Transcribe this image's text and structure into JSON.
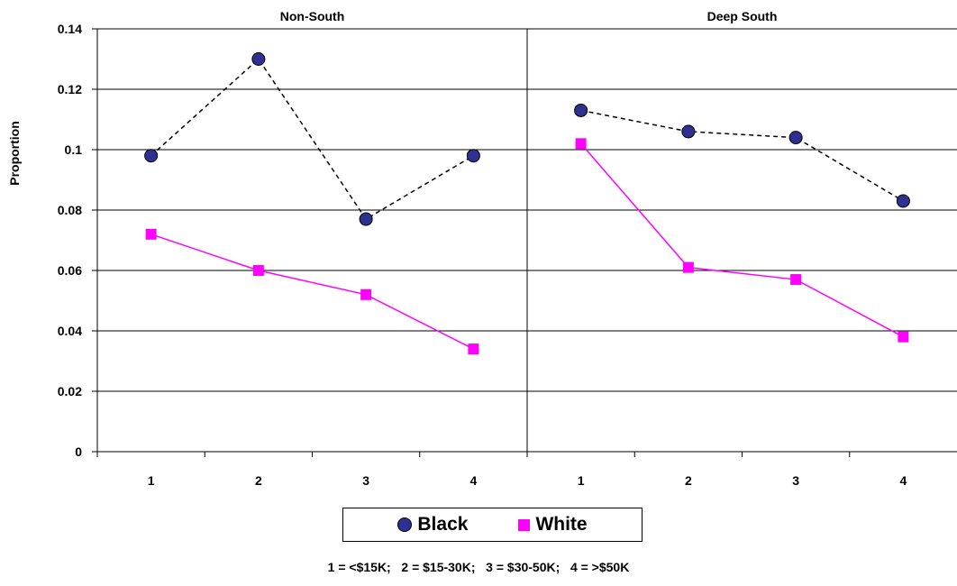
{
  "chart_data": {
    "type": "line",
    "panels": [
      {
        "title": "Non-South",
        "categories": [
          "1",
          "2",
          "3",
          "4"
        ],
        "series": [
          {
            "name": "Black",
            "values": [
              0.098,
              0.13,
              0.077,
              0.098
            ]
          },
          {
            "name": "White",
            "values": [
              0.072,
              0.06,
              0.052,
              0.034
            ]
          }
        ]
      },
      {
        "title": "Deep South",
        "categories": [
          "1",
          "2",
          "3",
          "4"
        ],
        "series": [
          {
            "name": "Black",
            "values": [
              0.113,
              0.106,
              0.104,
              0.083
            ]
          },
          {
            "name": "White",
            "values": [
              0.102,
              0.061,
              0.057,
              0.038
            ]
          }
        ]
      }
    ],
    "ylabel": "Proportion",
    "ylim": [
      0,
      0.14
    ],
    "yticks": [
      "0",
      "0.02",
      "0.04",
      "0.06",
      "0.08",
      "0.1",
      "0.12",
      "0.14"
    ],
    "grid": true,
    "legend_position": "bottom",
    "series_styles": {
      "Black": {
        "color": "#2e3192",
        "line": "dashed",
        "line_color": "#000000",
        "marker": "circle"
      },
      "White": {
        "color": "#ff00ff",
        "line": "solid",
        "line_color": "#ff00ff",
        "marker": "square"
      }
    }
  },
  "legend": {
    "black_label": "Black",
    "white_label": "White"
  },
  "footnote": "1 = <$15K;   2 = $15-30K;   3 = $30-50K;   4 = >$50K"
}
